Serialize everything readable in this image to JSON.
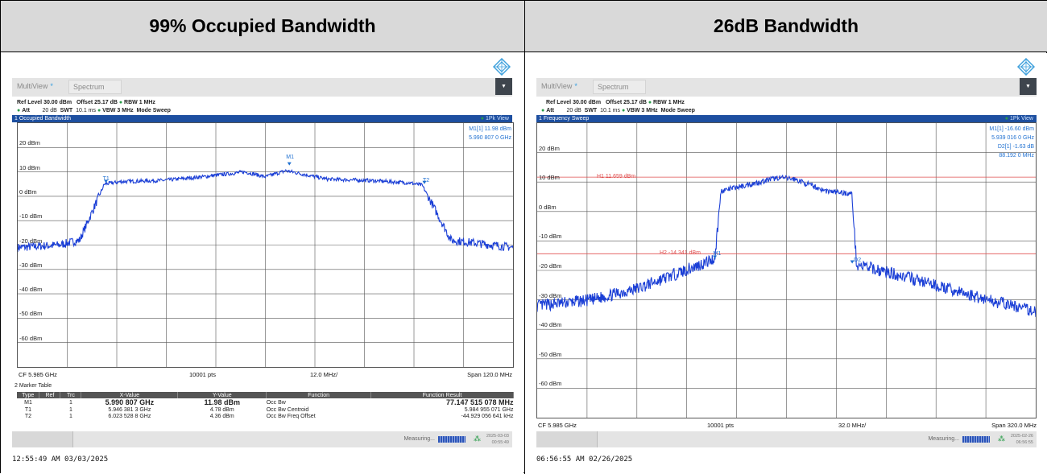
{
  "headers": {
    "left": "99% Occupied Bandwidth",
    "right": "26dB Bandwidth"
  },
  "common": {
    "multiview": "MultiView",
    "tab": "Spectrum",
    "ref_level": "Ref Level 30.00 dBm",
    "offset": "Offset 25.17 dB",
    "rbw": "RBW 1 MHz",
    "att": "Att",
    "att_val": "20 dB",
    "swt": "SWT",
    "swt_val": "10.1 ms",
    "vbw": "VBW 3 MHz",
    "mode": "Mode Sweep",
    "pk_view": "1Pk View",
    "measuring": "Measuring...",
    "dropdown_icon": "chevron-down",
    "logo_icon": "rs-diamond-logo"
  },
  "left": {
    "window_title": "1 Occupied Bandwidth",
    "y_labels": [
      "20 dBm",
      "10 dBm",
      "0 dBm",
      "-10 dBm",
      "-20 dBm",
      "-30 dBm",
      "-40 dBm",
      "-50 dBm",
      "-60 dBm"
    ],
    "marker_info": [
      "M1[1]    11.98 dBm",
      "5.990 807 0 GHz"
    ],
    "marker_labels": {
      "t1": "T1",
      "t2": "T2",
      "m1": "M1"
    },
    "cf": "CF 5.985 GHz",
    "pts": "10001 pts",
    "div": "12.0 MHz/",
    "span": "Span 120.0 MHz",
    "table_title": "2 Marker Table",
    "table_headers": [
      "Type",
      "Ref",
      "Trc",
      "X-Value",
      "Y-Value",
      "Function",
      "Function Result"
    ],
    "table_rows": [
      [
        "M1",
        "",
        "1",
        "5.990 807 GHz",
        "11.98 dBm",
        "Occ Bw",
        "77.147 515 078 MHz"
      ],
      [
        "T1",
        "",
        "1",
        "5.946 381 3 GHz",
        "4.78 dBm",
        "Occ Bw Centroid",
        "5.984 955 071 GHz"
      ],
      [
        "T2",
        "",
        "1",
        "6.023 528 8 GHz",
        "4.36 dBm",
        "Occ Bw Freq Offset",
        "-44.929 056 641 kHz"
      ]
    ],
    "date": "2025-03-03",
    "time": "00:55:49",
    "timestamp": "12:55:49 AM  03/03/2025"
  },
  "right": {
    "window_title": "1 Frequency Sweep",
    "y_labels": [
      "20 dBm",
      "10 dBm",
      "0 dBm",
      "-10 dBm",
      "-20 dBm",
      "-30 dBm",
      "-40 dBm",
      "-50 dBm",
      "-60 dBm"
    ],
    "marker_info": [
      "M1[1]       -16.60 dBm",
      "5.939 016 0 GHz",
      "D2[1]           -1.63 dB",
      "88.192 0 MHz"
    ],
    "h1": "H1 11.659 dBm",
    "h2": "H2 -14.341 dBm",
    "marker_labels": {
      "m1": "M1",
      "d2": "D2"
    },
    "cf": "CF 5.985 GHz",
    "pts": "10001 pts",
    "div": "32.0 MHz/",
    "span": "Span 320.0 MHz",
    "date": "2025-02-26",
    "time": "06:56:55",
    "timestamp": "06:56:55 AM  02/26/2025"
  },
  "chart_data": [
    {
      "type": "line",
      "title": "1 Occupied Bandwidth",
      "xlabel": "",
      "ylabel": "",
      "xlim": [
        5.925,
        6.045
      ],
      "ylim": [
        -70,
        30
      ],
      "x_unit": "GHz",
      "y_unit": "dBm",
      "grid": true,
      "series": [
        {
          "x": [
            5.925,
            5.935,
            5.94,
            5.946,
            5.95,
            5.96,
            5.97,
            5.98,
            5.985,
            5.99,
            6.0,
            6.01,
            6.02,
            6.023,
            6.03,
            6.045
          ],
          "values": [
            -21,
            -20,
            -18,
            5,
            6,
            6.5,
            8,
            10,
            8,
            10.5,
            7,
            6.5,
            5.5,
            4.5,
            -18,
            -21
          ]
        }
      ],
      "markers": [
        {
          "name": "M1",
          "x": 5.990807,
          "y": 11.98
        },
        {
          "name": "T1",
          "x": 5.9463813,
          "y": 4.78
        },
        {
          "name": "T2",
          "x": 6.0235288,
          "y": 4.36
        }
      ]
    },
    {
      "type": "line",
      "title": "1 Frequency Sweep",
      "xlabel": "",
      "ylabel": "",
      "xlim": [
        5.825,
        6.145
      ],
      "ylim": [
        -70,
        30
      ],
      "x_unit": "GHz",
      "y_unit": "dBm",
      "grid": true,
      "series": [
        {
          "x": [
            5.825,
            5.86,
            5.89,
            5.91,
            5.93,
            5.939,
            5.943,
            5.96,
            5.98,
            5.99,
            6.01,
            6.027,
            6.03,
            6.06,
            6.1,
            6.145
          ],
          "values": [
            -32,
            -30,
            -26,
            -22,
            -18,
            -16,
            7,
            9,
            11.5,
            11,
            7,
            6,
            -18,
            -22,
            -28,
            -34
          ]
        }
      ],
      "markers": [
        {
          "name": "M1",
          "x": 5.939016,
          "y": -16.6
        },
        {
          "name": "D2",
          "x": 6.027208,
          "y": -18.23
        }
      ],
      "hlines": [
        {
          "name": "H1",
          "y": 11.659
        },
        {
          "name": "H2",
          "y": -14.341
        }
      ]
    }
  ]
}
